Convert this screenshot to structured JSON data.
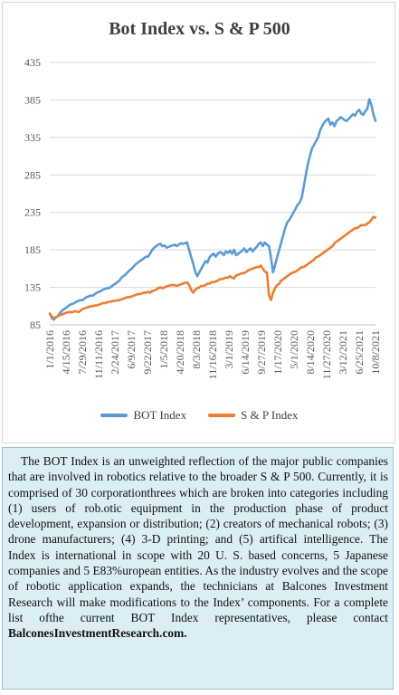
{
  "chart_data": {
    "type": "line",
    "title": "Bot Index vs. S & P 500",
    "y_ticks": [
      85,
      135,
      185,
      235,
      285,
      335,
      385,
      435
    ],
    "ylim": [
      85,
      435
    ],
    "x_tick_labels": [
      "1/1/2016",
      "4/15/2016",
      "7/29/2016",
      "11/11/2016",
      "2/24/2017",
      "6/9/2017",
      "9/22/2017",
      "1/5/2018",
      "4/20/2018",
      "8/3/2018",
      "11/16/2018",
      "3/1/2019",
      "6/14/2019",
      "9/27/2019",
      "1/17/2020",
      "5/1/2020",
      "8/14/2020",
      "11/27/2020",
      "3/12/2021",
      "6/25/2021",
      "10/8/2021"
    ],
    "grid": true,
    "legend_position": "bottom",
    "series": [
      {
        "name": "BOT Index",
        "color": "#5b9bd5",
        "values": [
          100,
          94,
          92,
          95,
          97,
          101,
          104,
          106,
          108,
          110,
          112,
          113,
          114,
          116,
          117,
          118,
          118,
          120,
          122,
          123,
          124,
          124,
          126,
          128,
          129,
          130,
          132,
          133,
          134,
          134,
          136,
          138,
          140,
          142,
          144,
          148,
          150,
          152,
          155,
          158,
          160,
          163,
          166,
          168,
          170,
          172,
          174,
          176,
          176,
          180,
          185,
          188,
          190,
          192,
          193,
          190,
          191,
          188,
          189,
          190,
          191,
          192,
          190,
          192,
          194,
          193,
          194,
          195,
          185,
          176,
          167,
          156,
          150,
          155,
          160,
          165,
          170,
          168,
          175,
          178,
          180,
          176,
          180,
          182,
          181,
          178,
          183,
          181,
          184,
          180,
          185,
          178,
          180,
          182,
          184,
          187,
          182,
          185,
          187,
          183,
          186,
          189,
          193,
          195,
          190,
          195,
          192,
          190,
          175,
          155,
          165,
          175,
          185,
          195,
          205,
          215,
          222,
          225,
          230,
          235,
          240,
          245,
          248,
          255,
          270,
          285,
          300,
          310,
          320,
          325,
          330,
          335,
          345,
          350,
          355,
          358,
          360,
          352,
          355,
          350,
          357,
          359,
          362,
          360,
          358,
          357,
          360,
          363,
          366,
          364,
          369,
          372,
          367,
          365,
          370,
          373,
          386,
          378,
          366,
          357
        ]
      },
      {
        "name": "S & P Index",
        "color": "#ed7d31",
        "values": [
          100,
          96,
          94,
          95,
          97,
          98,
          99,
          100,
          101,
          102,
          102,
          102,
          103,
          103,
          102,
          104,
          106,
          107,
          108,
          109,
          110,
          110,
          111,
          111,
          112,
          113,
          114,
          114,
          115,
          116,
          116,
          117,
          117,
          118,
          118,
          119,
          120,
          121,
          122,
          122,
          123,
          124,
          125,
          126,
          126,
          127,
          128,
          128,
          129,
          128,
          130,
          131,
          132,
          134,
          135,
          134,
          135,
          136,
          137,
          138,
          138,
          138,
          137,
          138,
          139,
          140,
          141,
          142,
          138,
          132,
          128,
          132,
          134,
          135,
          137,
          137,
          138,
          140,
          140,
          142,
          142,
          143,
          144,
          146,
          146,
          147,
          148,
          148,
          150,
          148,
          147,
          151,
          152,
          153,
          154,
          154,
          156,
          158,
          159,
          160,
          161,
          162,
          162,
          164,
          160,
          156,
          155,
          125,
          118,
          128,
          134,
          138,
          140,
          144,
          146,
          148,
          150,
          152,
          154,
          155,
          156,
          158,
          160,
          162,
          162,
          164,
          166,
          168,
          170,
          172,
          175,
          176,
          178,
          180,
          182,
          184,
          186,
          188,
          190,
          194,
          196,
          198,
          200,
          202,
          204,
          206,
          208,
          210,
          212,
          214,
          214,
          216,
          218,
          218,
          218,
          220,
          222,
          225,
          229,
          228
        ]
      }
    ]
  },
  "legend": [
    {
      "label": "BOT Index",
      "color": "#5b9bd5"
    },
    {
      "label": "S & P Index",
      "color": "#ed7d31"
    }
  ],
  "note": {
    "body": "The BOT Index is an unweighted reflection of the major public companies that are involved in robotics relative to the broader S & P 500. Currently, it is comprised of 30 corporationthrees which are broken into categories including (1) users of rob.otic equipment in the production phase of product development, expansion or distribution; (2) creators of mechanical robots; (3) drone manufacturers; (4) 3-D printing; and (5) artifical intelligence. The Index is international in scope with 20 U. S. based concerns, 5 Japanese companies and 5 E83%uropean entities. As the industry evolves and the scope of robotic application expands, the technicians at Balcones Investment Research will make modifications to the Index’ components. For a  complete list ofthe current BOT Index representatives, please contact ",
    "link": "BalconesInvestmentResearch.com."
  }
}
